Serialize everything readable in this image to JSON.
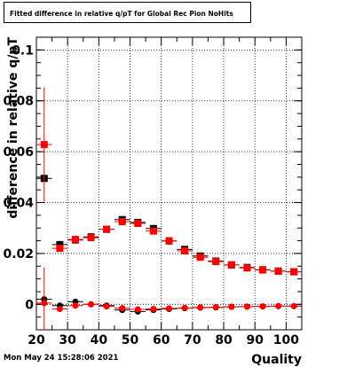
{
  "title": "Fitted difference in relative q/pT for Global Rec Pion NoHits",
  "timestamp": "Mon May 24 15:28:06 2021",
  "chart_data": {
    "type": "scatter",
    "title": "Fitted difference in relative q/pT for Global Rec Pion NoHits",
    "xlabel": "Quality",
    "ylabel": "difference in relative q/pT",
    "xlim": [
      20,
      105
    ],
    "ylim": [
      -0.01,
      0.105
    ],
    "grid": true,
    "x_ticks": [
      20,
      30,
      40,
      50,
      60,
      70,
      80,
      90,
      100
    ],
    "y_ticks": [
      0,
      0.02,
      0.04,
      0.06,
      0.08,
      0.1
    ],
    "x_tick_labels": [
      "20",
      "30",
      "40",
      "50",
      "60",
      "70",
      "80",
      "90",
      "100"
    ],
    "y_tick_labels": [
      "0",
      "0.02",
      "0.04",
      "0.06",
      "0.08",
      "0.1"
    ],
    "series": [
      {
        "marker": "square",
        "color": "#000000",
        "points": [
          {
            "x": 22.5,
            "y": 0.0495,
            "yerr": 0.0
          },
          {
            "x": 27.5,
            "y": 0.0235,
            "yerr": 0.0
          },
          {
            "x": 32.5,
            "y": 0.0253,
            "yerr": 0.0
          },
          {
            "x": 37.5,
            "y": 0.0265,
            "yerr": 0.0
          },
          {
            "x": 42.5,
            "y": 0.0295,
            "yerr": 0.0
          },
          {
            "x": 47.5,
            "y": 0.0333,
            "yerr": 0.0
          },
          {
            "x": 52.5,
            "y": 0.0322,
            "yerr": 0.0
          },
          {
            "x": 57.5,
            "y": 0.0298,
            "yerr": 0.0
          },
          {
            "x": 62.5,
            "y": 0.0249,
            "yerr": 0.0
          },
          {
            "x": 67.5,
            "y": 0.0216,
            "yerr": 0.0
          },
          {
            "x": 72.5,
            "y": 0.019,
            "yerr": 0.0
          },
          {
            "x": 77.5,
            "y": 0.017,
            "yerr": 0.0
          },
          {
            "x": 82.5,
            "y": 0.0155,
            "yerr": 0.0
          },
          {
            "x": 87.5,
            "y": 0.0145,
            "yerr": 0.0
          },
          {
            "x": 92.5,
            "y": 0.0136,
            "yerr": 0.0
          },
          {
            "x": 97.5,
            "y": 0.0131,
            "yerr": 0.0
          },
          {
            "x": 102.5,
            "y": 0.0128,
            "yerr": 0.0
          }
        ]
      },
      {
        "marker": "square",
        "color": "#ff0000",
        "points": [
          {
            "x": 22.5,
            "y": 0.0628,
            "yerr": 0.0225
          },
          {
            "x": 27.5,
            "y": 0.022,
            "yerr": 0.0
          },
          {
            "x": 32.5,
            "y": 0.0255,
            "yerr": 0.0
          },
          {
            "x": 37.5,
            "y": 0.0262,
            "yerr": 0.0
          },
          {
            "x": 42.5,
            "y": 0.0295,
            "yerr": 0.0
          },
          {
            "x": 47.5,
            "y": 0.0325,
            "yerr": 0.0
          },
          {
            "x": 52.5,
            "y": 0.0318,
            "yerr": 0.0
          },
          {
            "x": 57.5,
            "y": 0.0288,
            "yerr": 0.0
          },
          {
            "x": 62.5,
            "y": 0.025,
            "yerr": 0.0
          },
          {
            "x": 67.5,
            "y": 0.021,
            "yerr": 0.0
          },
          {
            "x": 72.5,
            "y": 0.0185,
            "yerr": 0.0
          },
          {
            "x": 77.5,
            "y": 0.0168,
            "yerr": 0.0
          },
          {
            "x": 82.5,
            "y": 0.0155,
            "yerr": 0.0
          },
          {
            "x": 87.5,
            "y": 0.0143,
            "yerr": 0.0
          },
          {
            "x": 92.5,
            "y": 0.0135,
            "yerr": 0.0
          },
          {
            "x": 97.5,
            "y": 0.013,
            "yerr": 0.0
          },
          {
            "x": 102.5,
            "y": 0.0128,
            "yerr": 0.0
          }
        ]
      },
      {
        "marker": "circle",
        "color": "#000000",
        "points": [
          {
            "x": 22.5,
            "y": 0.002,
            "yerr": 0.0
          },
          {
            "x": 27.5,
            "y": -0.0005,
            "yerr": 0.0
          },
          {
            "x": 32.5,
            "y": 0.001,
            "yerr": 0.0
          },
          {
            "x": 37.5,
            "y": 0.0,
            "yerr": 0.0
          },
          {
            "x": 42.5,
            "y": -0.0005,
            "yerr": 0.0
          },
          {
            "x": 47.5,
            "y": -0.0022,
            "yerr": 0.0
          },
          {
            "x": 52.5,
            "y": -0.0028,
            "yerr": 0.0
          },
          {
            "x": 57.5,
            "y": -0.0022,
            "yerr": 0.0
          },
          {
            "x": 62.5,
            "y": -0.0018,
            "yerr": 0.0
          },
          {
            "x": 67.5,
            "y": -0.0015,
            "yerr": 0.0
          },
          {
            "x": 72.5,
            "y": -0.0013,
            "yerr": 0.0
          },
          {
            "x": 77.5,
            "y": -0.0012,
            "yerr": 0.0
          },
          {
            "x": 82.5,
            "y": -0.001,
            "yerr": 0.0
          },
          {
            "x": 87.5,
            "y": -0.0009,
            "yerr": 0.0
          },
          {
            "x": 92.5,
            "y": -0.0008,
            "yerr": 0.0
          },
          {
            "x": 97.5,
            "y": -0.0007,
            "yerr": 0.0
          },
          {
            "x": 102.5,
            "y": -0.0007,
            "yerr": 0.0
          }
        ]
      },
      {
        "marker": "circle",
        "color": "#ff0000",
        "points": [
          {
            "x": 22.5,
            "y": 0.0005,
            "yerr": 0.014
          },
          {
            "x": 27.5,
            "y": -0.0018,
            "yerr": 0.0
          },
          {
            "x": 32.5,
            "y": -0.0005,
            "yerr": 0.0
          },
          {
            "x": 37.5,
            "y": 0.0,
            "yerr": 0.0
          },
          {
            "x": 42.5,
            "y": -0.0008,
            "yerr": 0.0
          },
          {
            "x": 47.5,
            "y": -0.0015,
            "yerr": 0.0
          },
          {
            "x": 52.5,
            "y": -0.002,
            "yerr": 0.0
          },
          {
            "x": 57.5,
            "y": -0.0018,
            "yerr": 0.0
          },
          {
            "x": 62.5,
            "y": -0.0016,
            "yerr": 0.0
          },
          {
            "x": 67.5,
            "y": -0.0014,
            "yerr": 0.0
          },
          {
            "x": 72.5,
            "y": -0.0012,
            "yerr": 0.0
          },
          {
            "x": 77.5,
            "y": -0.0011,
            "yerr": 0.0
          },
          {
            "x": 82.5,
            "y": -0.001,
            "yerr": 0.0
          },
          {
            "x": 87.5,
            "y": -0.0009,
            "yerr": 0.0
          },
          {
            "x": 92.5,
            "y": -0.0008,
            "yerr": 0.0
          },
          {
            "x": 97.5,
            "y": -0.0007,
            "yerr": 0.0
          },
          {
            "x": 102.5,
            "y": -0.0007,
            "yerr": 0.0
          }
        ]
      }
    ]
  }
}
